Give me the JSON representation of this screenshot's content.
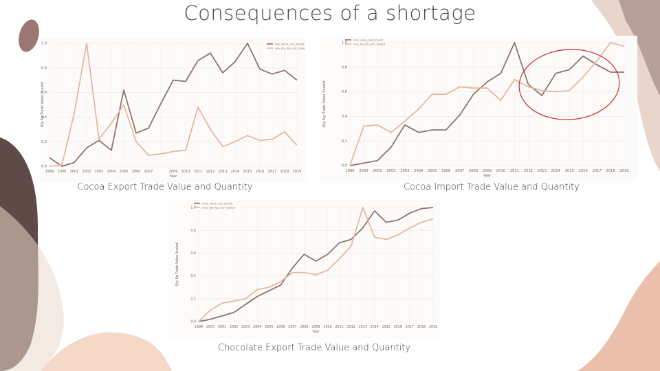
{
  "title": "Consequences of a shortage",
  "colors": {
    "value_line": "#8c736c",
    "quantity_line": "#e7b69e",
    "highlight": "#cc2a2a"
  },
  "captions": [
    "Cocoa Export Trade Value and Quantity",
    "Cocoa Import Trade Value and Quantity",
    "Chocolate Export Trade Value and Quantity"
  ],
  "chart_data": [
    {
      "type": "line",
      "xlabel": "Year",
      "ylabel": "Qty Kg Trade Value Scaled",
      "ylim": [
        0,
        1.0
      ],
      "yticks": [
        "0.0",
        "0.2",
        "0.4",
        "0.6",
        "0.8",
        "1.0"
      ],
      "x": [
        "1999",
        "2000",
        "2001",
        "2002",
        "2003",
        "2004",
        "2005",
        "2006",
        "2007",
        "2008",
        "2009",
        "2010",
        "2011",
        "2012",
        "2013",
        "2014",
        "2015",
        "2016",
        "2017",
        "2018",
        "2019"
      ],
      "xticks": [
        "1999",
        "2000",
        "2001",
        "2002",
        "2003",
        "2004",
        "2005",
        "2006",
        "2007",
        "2009",
        "2010",
        "2011",
        "2012",
        "2013",
        "2014",
        "2015",
        "2016",
        "2017",
        "2018",
        "2019"
      ],
      "legend": [
        "exp_value_usd_Scaled",
        "exp_qty_kg_sum_Scaled"
      ],
      "series": [
        {
          "name": "exp_value_usd_Scaled",
          "values": [
            0.07,
            0.0,
            0.03,
            0.15,
            0.21,
            0.13,
            0.62,
            0.27,
            0.31,
            0.51,
            0.7,
            0.69,
            0.86,
            0.92,
            0.76,
            0.85,
            1.0,
            0.79,
            0.75,
            0.78,
            0.7
          ]
        },
        {
          "name": "exp_qty_kg_sum_Scaled",
          "values": [
            0.0,
            0.01,
            0.43,
            1.0,
            0.22,
            0.35,
            0.5,
            0.2,
            0.09,
            0.1,
            0.12,
            0.13,
            0.48,
            0.3,
            0.16,
            0.2,
            0.25,
            0.21,
            0.22,
            0.28,
            0.17
          ]
        }
      ]
    },
    {
      "type": "line",
      "xlabel": "Year",
      "ylabel": "Qty Kg Trade Value Scaled",
      "ylim": [
        0,
        1.0
      ],
      "yticks": [
        "0.0",
        "0.2",
        "0.4",
        "0.6",
        "0.8",
        "1.0"
      ],
      "x": [
        "1999",
        "2000",
        "2001",
        "2002",
        "2003",
        "2004",
        "2005",
        "2006",
        "2007",
        "2008",
        "2009",
        "2010",
        "2011",
        "2012",
        "2013",
        "2014",
        "2015",
        "2016",
        "2017",
        "2018",
        "2019"
      ],
      "xticks": [
        "1999",
        "2000",
        "2001",
        "2002",
        "2003",
        "2004",
        "2005",
        "2006",
        "2007",
        "2008",
        "2009",
        "2010",
        "2011",
        "2012",
        "2013",
        "2014",
        "2015",
        "2016",
        "2017",
        "2018",
        "2019"
      ],
      "legend": [
        "imp_value_usd_Scaled",
        "imp_qty_kg_sum_Scaled"
      ],
      "series": [
        {
          "name": "imp_value_usd_Scaled",
          "values": [
            0.0,
            0.02,
            0.04,
            0.15,
            0.33,
            0.27,
            0.29,
            0.29,
            0.41,
            0.58,
            0.68,
            0.75,
            1.0,
            0.66,
            0.57,
            0.75,
            0.78,
            0.89,
            0.82,
            0.76,
            0.76
          ]
        },
        {
          "name": "imp_qty_kg_sum_Scaled",
          "values": [
            0.0,
            0.32,
            0.33,
            0.27,
            0.36,
            0.46,
            0.58,
            0.58,
            0.64,
            0.63,
            0.63,
            0.53,
            0.7,
            0.64,
            0.61,
            0.6,
            0.61,
            0.72,
            0.85,
            1.0,
            0.97
          ]
        }
      ]
    },
    {
      "type": "line",
      "xlabel": "Year",
      "ylabel": "Qty Kg Trade Value Scaled",
      "ylim": [
        0,
        1.0
      ],
      "yticks": [
        "0.0",
        "0.2",
        "0.4",
        "0.6",
        "0.8",
        "1.0"
      ],
      "x": [
        "1999",
        "2000",
        "2001",
        "2002",
        "2003",
        "2004",
        "2005",
        "2006",
        "2007",
        "2008",
        "2009",
        "2010",
        "2011",
        "2012",
        "2013",
        "2014",
        "2015",
        "2016",
        "2017",
        "2018",
        "2019"
      ],
      "xticks": [
        "1999",
        "2000",
        "2001",
        "2002",
        "2003",
        "2004",
        "2005",
        "2006",
        "2007",
        "2008",
        "2009",
        "2010",
        "2011",
        "2012",
        "2013",
        "2014",
        "2015",
        "2016",
        "2017",
        "2018",
        "2019"
      ],
      "legend": [
        "choc_value_usd_Scaled",
        "choc_qty_kg_sum_Scaled"
      ],
      "series": [
        {
          "name": "choc_value_usd_Scaled",
          "values": [
            0.0,
            0.02,
            0.05,
            0.08,
            0.15,
            0.22,
            0.27,
            0.32,
            0.47,
            0.59,
            0.53,
            0.59,
            0.69,
            0.72,
            0.82,
            0.97,
            0.87,
            0.89,
            0.95,
            0.99,
            1.0
          ]
        },
        {
          "name": "choc_qty_kg_sum_Scaled",
          "values": [
            0.0,
            0.1,
            0.16,
            0.18,
            0.2,
            0.28,
            0.3,
            0.35,
            0.43,
            0.43,
            0.41,
            0.45,
            0.55,
            0.66,
            1.0,
            0.74,
            0.72,
            0.76,
            0.82,
            0.87,
            0.9
          ]
        }
      ]
    }
  ]
}
